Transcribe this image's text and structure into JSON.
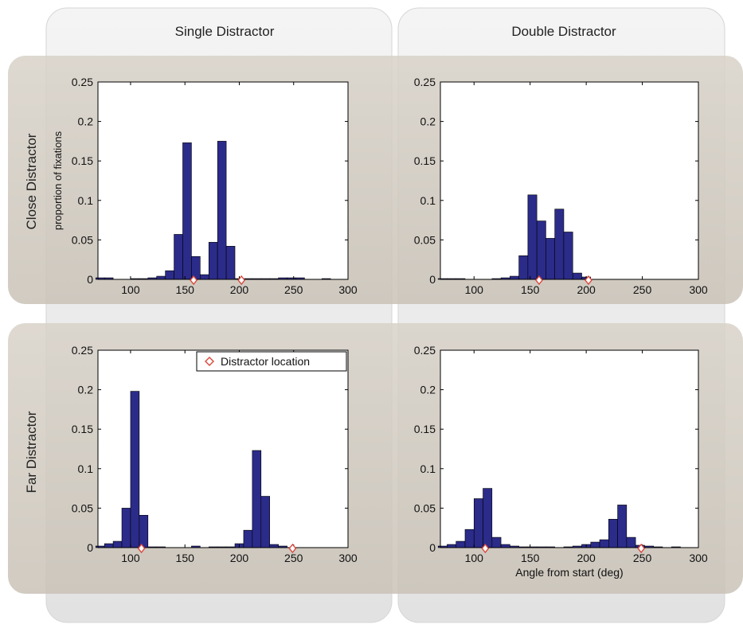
{
  "column_headers": [
    "Single Distractor",
    "Double Distractor"
  ],
  "row_headers": [
    "Close Distractor",
    "Far Distractor"
  ],
  "colors": {
    "bar_fill": "#2b2b8a",
    "bar_edge": "#000000",
    "marker": "#d9463a",
    "panel_shade": "#cfc8bd",
    "panel_light": "#ebebeb"
  },
  "chart_data": [
    {
      "type": "bar",
      "panel": "close-single",
      "ylabel": "proportion of fixations",
      "xlabel": "",
      "xlim": [
        70,
        300
      ],
      "ylim": [
        0,
        0.25
      ],
      "xticks": [
        100,
        150,
        200,
        250,
        300
      ],
      "yticks": [
        0,
        0.05,
        0.1,
        0.15,
        0.2,
        0.25
      ],
      "grid": false,
      "legend": null,
      "bar_width": 8,
      "x": [
        72,
        80,
        88,
        96,
        104,
        112,
        120,
        128,
        136,
        144,
        152,
        160,
        168,
        176,
        184,
        192,
        200,
        208,
        216,
        224,
        232,
        240,
        248,
        256,
        264,
        272,
        280,
        288
      ],
      "values": [
        0.002,
        0.002,
        0,
        0,
        0.001,
        0.001,
        0.002,
        0.004,
        0.011,
        0.057,
        0.173,
        0.029,
        0.006,
        0.047,
        0.175,
        0.042,
        0.001,
        0.001,
        0.001,
        0.001,
        0.001,
        0.002,
        0.002,
        0.002,
        0,
        0,
        0.001,
        0
      ],
      "distractor_locations": [
        158,
        202
      ]
    },
    {
      "type": "bar",
      "panel": "close-double",
      "ylabel": "",
      "xlabel": "",
      "xlim": [
        70,
        300
      ],
      "ylim": [
        0,
        0.25
      ],
      "xticks": [
        100,
        150,
        200,
        250,
        300
      ],
      "yticks": [
        0,
        0.05,
        0.1,
        0.15,
        0.2,
        0.25
      ],
      "grid": false,
      "legend": null,
      "bar_width": 8,
      "x": [
        72,
        80,
        88,
        96,
        104,
        112,
        120,
        128,
        136,
        144,
        152,
        160,
        168,
        176,
        184,
        192,
        200,
        208,
        216,
        224,
        232,
        240,
        248,
        256,
        264,
        272,
        280,
        288
      ],
      "values": [
        0.001,
        0.001,
        0.001,
        0,
        0,
        0,
        0.001,
        0.002,
        0.004,
        0.03,
        0.107,
        0.074,
        0.052,
        0.089,
        0.06,
        0.008,
        0.003,
        0,
        0,
        0,
        0,
        0,
        0,
        0,
        0,
        0,
        0,
        0
      ],
      "distractor_locations": [
        158,
        202
      ]
    },
    {
      "type": "bar",
      "panel": "far-single",
      "ylabel": "",
      "xlabel": "",
      "xlim": [
        70,
        300
      ],
      "ylim": [
        0,
        0.25
      ],
      "xticks": [
        100,
        150,
        200,
        250,
        300
      ],
      "yticks": [
        0,
        0.05,
        0.1,
        0.15,
        0.2,
        0.25
      ],
      "grid": false,
      "legend": {
        "label": "Distractor location",
        "position": "top-right"
      },
      "bar_width": 8,
      "x": [
        72,
        80,
        88,
        96,
        104,
        112,
        120,
        128,
        136,
        144,
        152,
        160,
        168,
        176,
        184,
        192,
        200,
        208,
        216,
        224,
        232,
        240,
        248,
        256,
        264,
        272,
        280,
        288
      ],
      "values": [
        0.002,
        0.005,
        0.008,
        0.05,
        0.198,
        0.041,
        0.001,
        0.001,
        0,
        0,
        0,
        0.002,
        0,
        0.001,
        0.001,
        0.001,
        0.005,
        0.022,
        0.123,
        0.065,
        0.004,
        0.002,
        0,
        0,
        0,
        0,
        0,
        0
      ],
      "x_offset": 0,
      "distractor_locations": [
        110,
        249
      ]
    },
    {
      "type": "bar",
      "panel": "far-double",
      "ylabel": "",
      "xlabel": "Angle from start (deg)",
      "xlim": [
        70,
        300
      ],
      "ylim": [
        0,
        0.25
      ],
      "xticks": [
        100,
        150,
        200,
        250,
        300
      ],
      "yticks": [
        0,
        0.05,
        0.1,
        0.15,
        0.2,
        0.25
      ],
      "grid": false,
      "legend": null,
      "bar_width": 8,
      "x": [
        72,
        80,
        88,
        96,
        104,
        112,
        120,
        128,
        136,
        144,
        152,
        160,
        168,
        176,
        184,
        192,
        200,
        208,
        216,
        224,
        232,
        240,
        248,
        256,
        264,
        272,
        280,
        288,
        296
      ],
      "values": [
        0.002,
        0.004,
        0.008,
        0.023,
        0.062,
        0.075,
        0.013,
        0.004,
        0.002,
        0.001,
        0.001,
        0.001,
        0.001,
        0,
        0.001,
        0.002,
        0.004,
        0.007,
        0.01,
        0.036,
        0.054,
        0.013,
        0.003,
        0.002,
        0.001,
        0,
        0.001,
        0,
        0
      ],
      "distractor_locations": [
        110,
        249
      ]
    }
  ]
}
